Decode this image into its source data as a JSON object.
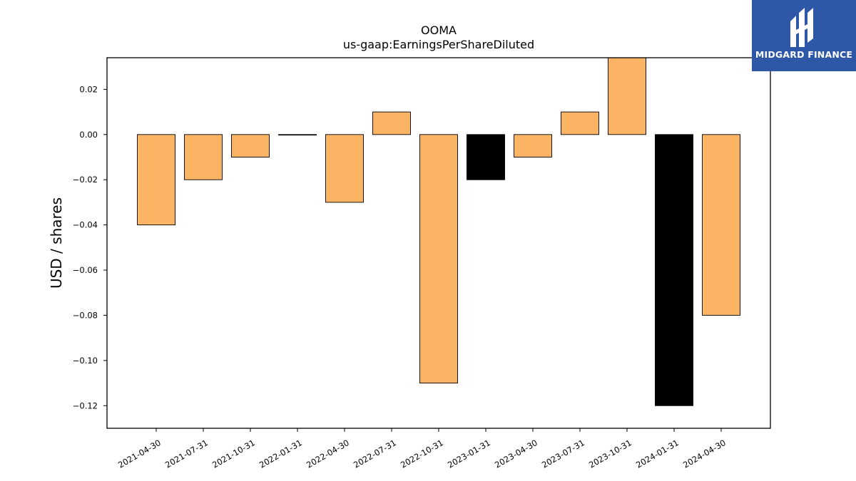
{
  "brand": {
    "name": "MIDGARD FINANCE",
    "logo_icon": "midgard-logo-icon",
    "color": "#2f57a8"
  },
  "chart_data": {
    "type": "bar",
    "title": "OOMA",
    "subtitle": "us-gaap:EarningsPerShareDiluted",
    "xlabel": "",
    "ylabel": "USD / shares",
    "ylim": [
      -0.13,
      0.034
    ],
    "yticks": [
      "0.02",
      "0.00",
      "−0.02",
      "−0.04",
      "−0.06",
      "−0.08",
      "−0.10",
      "−0.12"
    ],
    "ytick_values": [
      0.02,
      0.0,
      -0.02,
      -0.04,
      -0.06,
      -0.08,
      -0.1,
      -0.12
    ],
    "categories": [
      "2021-04-30",
      "2021-07-31",
      "2021-10-31",
      "2022-01-31",
      "2022-04-30",
      "2022-07-31",
      "2022-10-31",
      "2023-01-31",
      "2023-04-30",
      "2023-07-31",
      "2023-10-31",
      "2024-01-31",
      "2024-04-30"
    ],
    "values": [
      -0.04,
      -0.02,
      -0.01,
      0.0,
      -0.03,
      0.01,
      -0.11,
      -0.02,
      -0.01,
      0.01,
      0.04,
      -0.12,
      -0.08
    ],
    "bar_colors": [
      "#fbb463",
      "#fbb463",
      "#fbb463",
      "#fbb463",
      "#fbb463",
      "#fbb463",
      "#fbb463",
      "#000000",
      "#fbb463",
      "#fbb463",
      "#fbb463",
      "#000000",
      "#fbb463"
    ],
    "grid": false,
    "legend": "none"
  }
}
